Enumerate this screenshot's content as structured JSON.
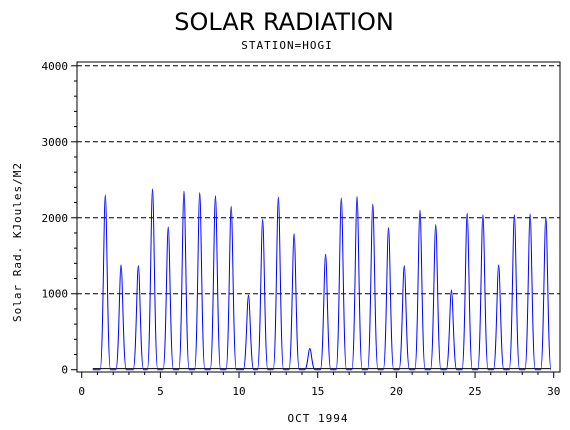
{
  "chart_data": {
    "type": "line",
    "title": "SOLAR RADIATION",
    "subtitle": "STATION=HOGI",
    "xlabel": "OCT 1994",
    "ylabel": "Solar Rad. KJoules/M2",
    "xlim": [
      -0.3,
      30.4
    ],
    "ylim": [
      -30,
      4050
    ],
    "xticks": [
      0,
      5,
      10,
      15,
      20,
      25,
      30
    ],
    "yticks": [
      0,
      1000,
      2000,
      3000,
      4000
    ],
    "grid": "horizontal-dashed",
    "series": [
      {
        "color": "#0000ff",
        "daily_peaks": [
          [
            1.5,
            2300
          ],
          [
            2.5,
            1380
          ],
          [
            3.6,
            1370
          ],
          [
            4.5,
            2380
          ],
          [
            5.5,
            1880
          ],
          [
            6.5,
            2350
          ],
          [
            7.5,
            2330
          ],
          [
            8.5,
            2290
          ],
          [
            9.5,
            2150
          ],
          [
            10.6,
            980
          ],
          [
            11.5,
            1980
          ],
          [
            12.5,
            2270
          ],
          [
            13.5,
            1790
          ],
          [
            14.5,
            280
          ],
          [
            15.5,
            1520
          ],
          [
            16.5,
            2260
          ],
          [
            17.5,
            2280
          ],
          [
            18.5,
            2180
          ],
          [
            19.5,
            1870
          ],
          [
            20.5,
            1370
          ],
          [
            21.5,
            2100
          ],
          [
            22.5,
            1910
          ],
          [
            23.5,
            1050
          ],
          [
            24.5,
            2060
          ],
          [
            25.5,
            2040
          ],
          [
            26.5,
            1380
          ],
          [
            27.5,
            2040
          ],
          [
            28.5,
            2050
          ],
          [
            29.5,
            2010
          ]
        ]
      },
      {
        "color": "#000000",
        "baseline": 15
      }
    ]
  }
}
